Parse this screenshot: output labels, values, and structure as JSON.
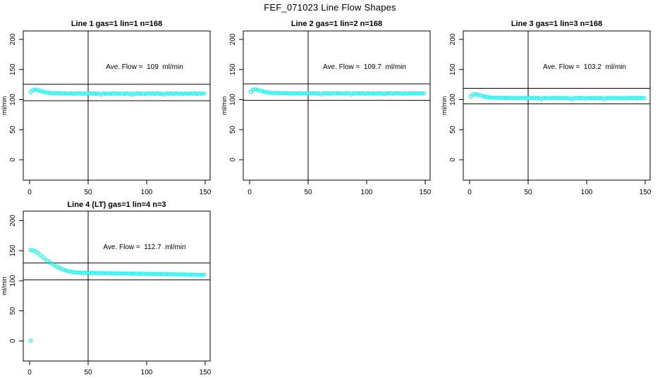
{
  "title": "FEF_071023  Line Flow Shapes",
  "chart_data": {
    "type": "scatter",
    "title": "FEF_071023  Line Flow Shapes",
    "point_color": "#00FFFF",
    "axis_color": "#000000",
    "background": "#FFFFFF",
    "axes": {
      "x_ticks": [
        0,
        50,
        100,
        150
      ],
      "y_ticks": [
        0,
        50,
        100,
        150,
        200
      ],
      "ylabel": "ml/min",
      "xlabel": "",
      "xlim": [
        -5,
        155
      ],
      "ylim": [
        -30,
        214
      ],
      "grid": false,
      "vline_x": 50
    },
    "panels": [
      {
        "title": "Line 1 gas=1 lin=1 n=168",
        "ave_flow": 109,
        "ave_flow_label": "Ave. Flow =  109  ml/min",
        "ref_lines": [
          125.4,
          98.1
        ],
        "x_start": 1,
        "x_step": 2,
        "y": [
          112.5,
          116.0,
          116.6,
          115.7,
          114.4,
          113.2,
          112.3,
          111.6,
          111.1,
          110.7,
          110.4,
          110.9,
          110.2,
          110.6,
          110.0,
          110.4,
          109.8,
          110.3,
          109.7,
          110.2,
          109.9,
          110.4,
          109.6,
          110.1,
          109.4,
          110.6,
          109.8,
          110.2,
          109.5,
          110.0,
          108.4,
          110.3,
          109.7,
          110.1,
          109.3,
          110.5,
          109.9,
          110.2,
          109.6,
          110.0,
          109.4,
          110.4,
          109.8,
          108.3,
          110.1,
          109.5,
          110.3,
          109.7,
          110.0,
          109.2,
          110.4,
          109.8,
          110.1,
          109.5,
          110.2,
          109.6,
          110.0,
          108.5,
          110.3,
          109.7,
          110.1,
          109.4,
          110.4,
          109.8,
          110.0,
          109.3,
          110.2,
          109.6,
          110.4,
          109.9,
          110.1,
          109.5,
          110.3,
          109.7,
          110.0
        ],
        "extra_points": []
      },
      {
        "title": "Line 2 gas=1 lin=2 n=168",
        "ave_flow": 109.7,
        "ave_flow_label": "Ave. Flow =  109.7  ml/min",
        "ref_lines": [
          126.2,
          98.7
        ],
        "x_start": 1,
        "x_step": 2,
        "y": [
          112.9,
          116.4,
          117.0,
          116.1,
          114.8,
          113.6,
          112.7,
          112.0,
          111.5,
          111.1,
          110.8,
          111.3,
          110.6,
          111.0,
          110.4,
          110.8,
          110.2,
          110.7,
          110.1,
          110.6,
          110.3,
          110.8,
          110.0,
          110.5,
          109.8,
          111.0,
          110.2,
          110.6,
          109.9,
          110.4,
          108.8,
          110.7,
          110.1,
          110.5,
          109.7,
          110.9,
          110.3,
          110.6,
          110.0,
          110.4,
          109.8,
          110.8,
          110.2,
          108.7,
          110.5,
          109.9,
          110.7,
          110.1,
          110.4,
          109.6,
          110.8,
          110.2,
          110.5,
          109.9,
          110.6,
          110.0,
          110.4,
          108.9,
          110.7,
          110.1,
          110.5,
          109.8,
          110.8,
          110.2,
          110.4,
          109.7,
          110.6,
          110.0,
          110.8,
          110.3,
          110.5,
          109.9,
          110.7,
          110.1,
          110.4
        ],
        "extra_points": []
      },
      {
        "title": "Line 3 gas=1 lin=3 n=168",
        "ave_flow": 103.2,
        "ave_flow_label": "Ave. Flow =  103.2  ml/min",
        "ref_lines": [
          118.7,
          92.9
        ],
        "x_start": 1,
        "x_step": 2,
        "y": [
          105.3,
          108.4,
          108.9,
          108.1,
          106.9,
          105.8,
          104.9,
          104.2,
          103.7,
          103.3,
          103.0,
          103.5,
          102.8,
          103.2,
          102.6,
          103.0,
          102.4,
          102.9,
          102.3,
          102.8,
          102.5,
          103.0,
          102.2,
          102.7,
          102.0,
          103.2,
          102.4,
          102.8,
          102.1,
          102.6,
          101.0,
          102.9,
          102.3,
          102.7,
          101.9,
          103.1,
          102.5,
          102.8,
          102.2,
          102.6,
          102.0,
          103.0,
          102.4,
          100.9,
          102.7,
          102.1,
          102.9,
          102.3,
          102.6,
          101.8,
          103.0,
          102.4,
          102.7,
          102.1,
          102.8,
          102.2,
          102.6,
          101.1,
          102.9,
          102.3,
          102.7,
          102.0,
          103.0,
          102.4,
          102.6,
          101.9,
          102.8,
          102.2,
          103.0,
          102.5,
          102.7,
          102.1,
          102.9,
          102.3,
          102.6
        ],
        "extra_points": []
      },
      {
        "title": "Line 4 (LT) gas=1 lin=4 n=3",
        "ave_flow": 112.7,
        "ave_flow_label": "Ave. Flow =  112.7  ml/min",
        "ref_lines": [
          129.6,
          101.4
        ],
        "x_start": 1,
        "x_step": 2,
        "y": [
          151.2,
          150.4,
          148.8,
          146.3,
          143.2,
          139.9,
          136.6,
          133.5,
          130.7,
          128.1,
          125.7,
          123.6,
          121.7,
          120.0,
          118.5,
          117.2,
          116.1,
          115.2,
          114.5,
          113.9,
          113.5,
          113.3,
          113.2,
          113.2,
          113.1,
          113.1,
          113.0,
          113.0,
          112.9,
          112.9,
          112.8,
          112.7,
          112.7,
          112.6,
          112.5,
          112.5,
          112.4,
          112.3,
          112.3,
          112.2,
          112.1,
          112.1,
          112.0,
          111.9,
          111.9,
          111.8,
          111.7,
          111.7,
          111.6,
          111.5,
          111.5,
          111.4,
          111.3,
          111.3,
          111.2,
          111.1,
          111.1,
          111.0,
          110.9,
          110.9,
          110.8,
          110.7,
          110.7,
          110.6,
          110.5,
          110.5,
          110.4,
          110.3,
          110.3,
          110.2,
          110.1,
          110.1,
          110.0,
          110.0,
          109.9
        ],
        "extra_points": [
          [
            1,
            0.5
          ]
        ]
      }
    ]
  }
}
